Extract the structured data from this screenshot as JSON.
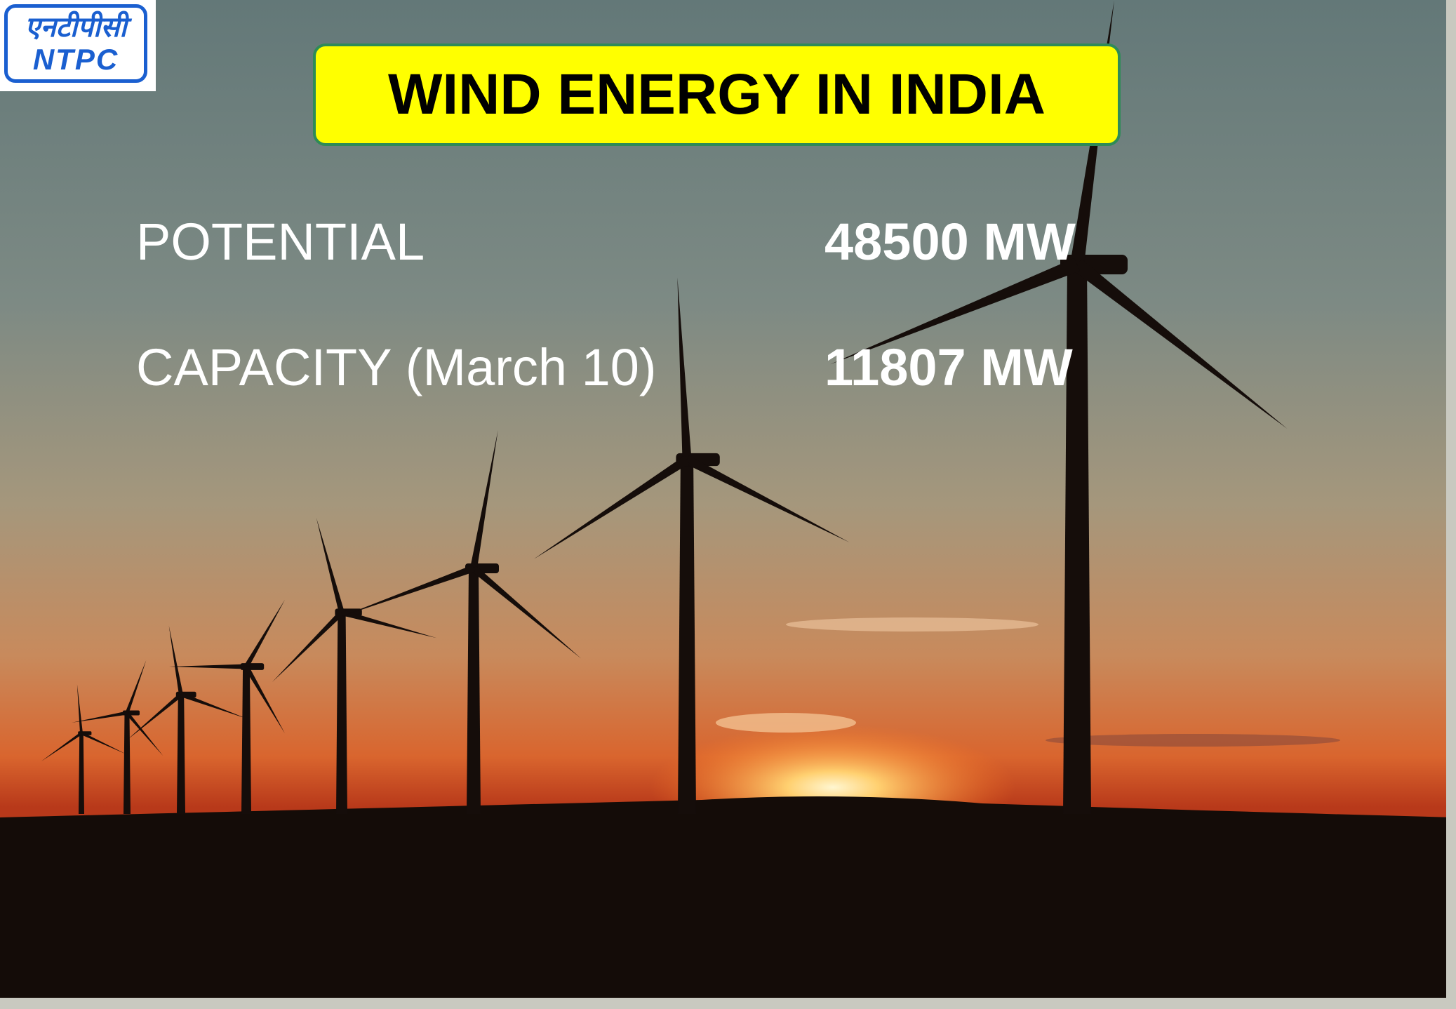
{
  "logo": {
    "hindi": "एनटीपीसी",
    "name": "NTPC"
  },
  "title": "WIND ENERGY IN INDIA",
  "rows": [
    {
      "label": "POTENTIAL",
      "value": "48500 MW"
    },
    {
      "label": "CAPACITY (March 10)",
      "value": "11807 MW"
    }
  ]
}
